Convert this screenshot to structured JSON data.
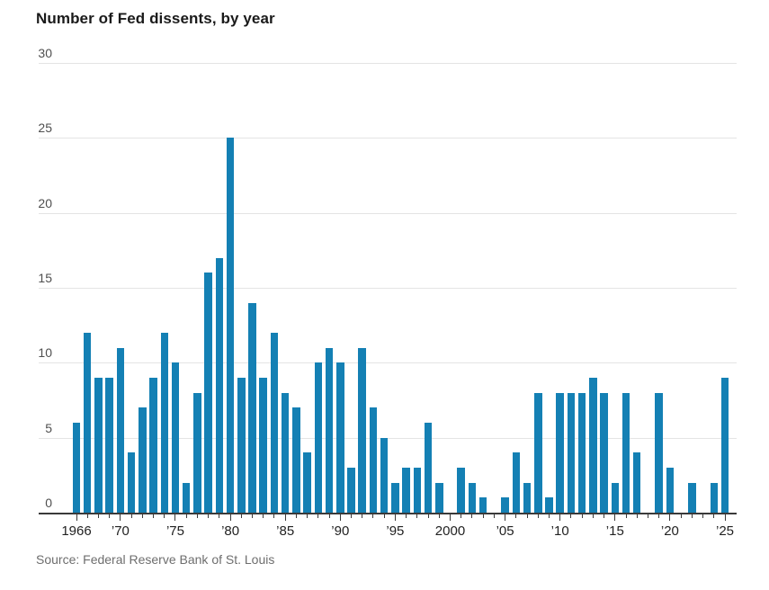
{
  "chart_data": {
    "type": "bar",
    "title": "Number of Fed dissents, by year",
    "source": "Source: Federal Reserve Bank of St. Louis",
    "xlabel": "",
    "ylabel": "",
    "ylim": [
      0,
      30
    ],
    "y_ticks": [
      0,
      5,
      10,
      15,
      20,
      25,
      30
    ],
    "grid": true,
    "legend": false,
    "bar_color": "#1480b4",
    "gridline_color": "#e4e4e4",
    "axis_line_color": "#3a3a3a",
    "categories": [
      1966,
      1967,
      1968,
      1969,
      1970,
      1971,
      1972,
      1973,
      1974,
      1975,
      1976,
      1977,
      1978,
      1979,
      1980,
      1981,
      1982,
      1983,
      1984,
      1985,
      1986,
      1987,
      1988,
      1989,
      1990,
      1991,
      1992,
      1993,
      1994,
      1995,
      1996,
      1997,
      1998,
      1999,
      2000,
      2001,
      2002,
      2003,
      2004,
      2005,
      2006,
      2007,
      2008,
      2009,
      2010,
      2011,
      2012,
      2013,
      2014,
      2015,
      2016,
      2017,
      2018,
      2019,
      2020,
      2021,
      2022,
      2023,
      2024,
      2025
    ],
    "values": [
      6,
      12,
      9,
      9,
      11,
      4,
      7,
      9,
      12,
      10,
      2,
      8,
      16,
      17,
      25,
      9,
      14,
      9,
      12,
      8,
      7,
      4,
      10,
      11,
      10,
      3,
      11,
      7,
      5,
      2,
      3,
      3,
      6,
      2,
      0,
      3,
      2,
      1,
      0,
      1,
      4,
      2,
      8,
      1,
      8,
      8,
      8,
      9,
      8,
      2,
      8,
      4,
      0,
      8,
      3,
      0,
      2,
      0,
      2,
      9
    ],
    "x_tick_labels": [
      {
        "year": 1966,
        "label": "1966"
      },
      {
        "year": 1970,
        "label": "’70"
      },
      {
        "year": 1975,
        "label": "’75"
      },
      {
        "year": 1980,
        "label": "’80"
      },
      {
        "year": 1985,
        "label": "’85"
      },
      {
        "year": 1990,
        "label": "’90"
      },
      {
        "year": 1995,
        "label": "’95"
      },
      {
        "year": 2000,
        "label": "2000"
      },
      {
        "year": 2005,
        "label": "’05"
      },
      {
        "year": 2010,
        "label": "’10"
      },
      {
        "year": 2015,
        "label": "’15"
      },
      {
        "year": 2020,
        "label": "’20"
      },
      {
        "year": 2025,
        "label": "’25"
      }
    ]
  }
}
